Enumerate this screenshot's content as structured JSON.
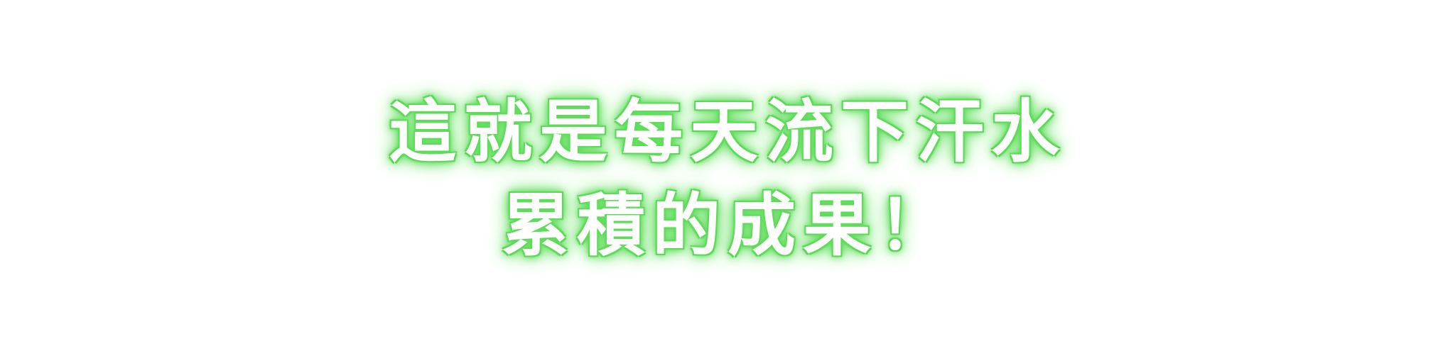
{
  "caption": {
    "line1": "這就是每天流下汗水",
    "line2": "累積的成果！"
  },
  "colors": {
    "text": "#ffffff",
    "glow": "#5fdc5a",
    "background": "#ffffff"
  }
}
